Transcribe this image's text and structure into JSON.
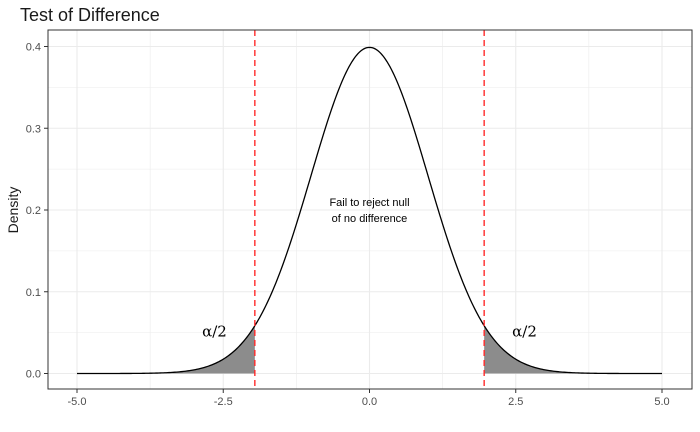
{
  "chart_data": {
    "type": "area",
    "title": "Test of Difference",
    "xlabel": "",
    "ylabel": "Density",
    "xlim": [
      -5.0,
      5.0
    ],
    "ylim": [
      0.0,
      0.4
    ],
    "x_ticks": [
      "-5.0",
      "-2.5",
      "0.0",
      "2.5",
      "5.0"
    ],
    "y_ticks": [
      "0.0",
      "0.1",
      "0.2",
      "0.3",
      "0.4"
    ],
    "grid": true,
    "distribution": {
      "name": "standard normal",
      "mean": 0,
      "sd": 1
    },
    "critical_values": [
      -1.96,
      1.96
    ],
    "shaded_tails": [
      [
        -5.0,
        -1.96
      ],
      [
        1.96,
        5.0
      ]
    ],
    "annotations": [
      {
        "text": "Fail to reject null",
        "x": 0.0,
        "y": 0.21
      },
      {
        "text": "of no difference",
        "x": 0.0,
        "y": 0.19
      },
      {
        "text": "α/2",
        "x": -2.65,
        "y": 0.05
      },
      {
        "text": "α/2",
        "x": 2.65,
        "y": 0.05
      }
    ],
    "colors": {
      "curve": "#000000",
      "tail_fill": "#8c8c8c",
      "critical_line": "#ff2a2a",
      "grid": "#ebebeb",
      "panel_border": "#333333"
    }
  }
}
